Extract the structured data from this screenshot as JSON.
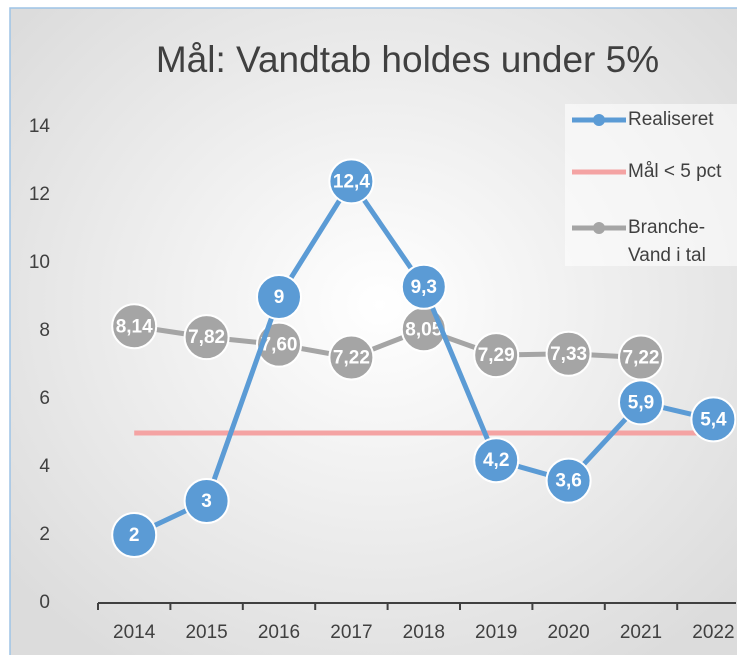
{
  "chart_data": {
    "type": "line",
    "title": "Mål: Vandtab holdes under 5%",
    "categories": [
      "2014",
      "2015",
      "2016",
      "2017",
      "2018",
      "2019",
      "2020",
      "2021",
      "2022"
    ],
    "series": [
      {
        "name": "Mål < 5 pct",
        "color": "#f4a3a3",
        "marker": false,
        "values": [
          5,
          5,
          5,
          5,
          5,
          5,
          5,
          5,
          5
        ]
      },
      {
        "name": "Branche-Vand i tal",
        "color": "#a5a5a5",
        "marker": true,
        "values": [
          8.14,
          7.82,
          7.6,
          7.22,
          8.05,
          7.29,
          7.33,
          7.22,
          null
        ],
        "value_labels": [
          "8,14",
          "7,82",
          "7,60",
          "7,22",
          "8,05",
          "7,29",
          "7,33",
          "7,22",
          null
        ]
      },
      {
        "name": "Realiseret",
        "color": "#5b9bd5",
        "marker": true,
        "values": [
          2,
          3,
          9,
          12.4,
          9.3,
          4.2,
          3.6,
          5.9,
          5.4
        ],
        "value_labels": [
          "2",
          "3",
          "9",
          "12,4",
          "9,3",
          "4,2",
          "3,6",
          "5,9",
          "5,4"
        ]
      }
    ],
    "legend_order": [
      2,
      0,
      1
    ],
    "ylim": [
      0,
      14
    ],
    "yticks": [
      0,
      2,
      4,
      6,
      8,
      10,
      12,
      14
    ],
    "grid": false,
    "legend": "top-right"
  }
}
